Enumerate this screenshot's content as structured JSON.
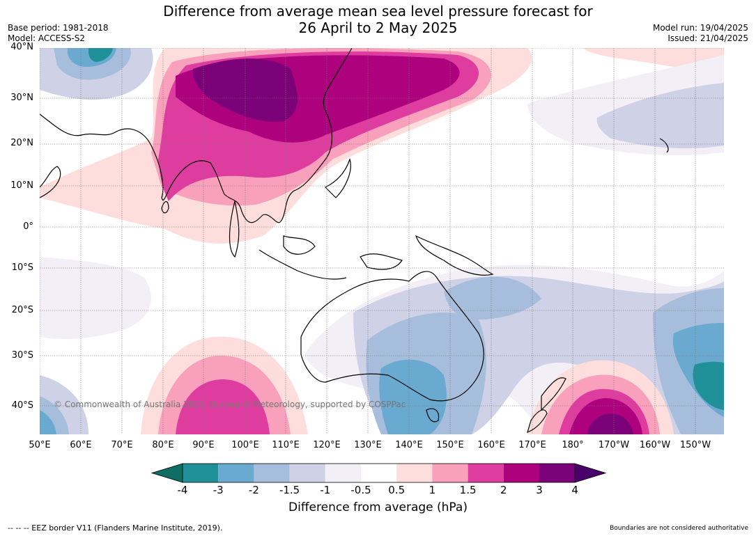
{
  "title_line1": "Difference from average mean sea level pressure forecast for",
  "title_line2": "26 April to 2 May 2025",
  "base_period": "Base period: 1981-2018",
  "model": "Model: ACCESS-S2",
  "model_run": "Model run: 19/04/2025",
  "issued": "Issued: 21/04/2025",
  "copyright": "© Commonwealth of Australia 2025, Bureau of Meteorology, supported by COSPPac",
  "lat_labels": [
    "40°N",
    "30°N",
    "20°N",
    "10°N",
    "0°",
    "10°S",
    "20°S",
    "30°S",
    "40°S"
  ],
  "lon_labels": [
    "50°E",
    "60°E",
    "70°E",
    "80°E",
    "90°E",
    "100°E",
    "110°E",
    "120°E",
    "130°E",
    "140°E",
    "150°E",
    "160°E",
    "170°E",
    "180°",
    "170°W",
    "160°W",
    "150°W"
  ],
  "colorbar": {
    "title": "Difference from average (hPa)",
    "ticks": [
      "-4",
      "-3",
      "-2",
      "-1.5",
      "-1",
      "-0.5",
      "0.5",
      "1",
      "1.5",
      "2",
      "3",
      "4"
    ],
    "colors": [
      "#0f6e64",
      "#1f9097",
      "#6aa9d0",
      "#a6bedb",
      "#cfd1e6",
      "#f3eff6",
      "#ffffff",
      "#fddedc",
      "#f9a0bd",
      "#df3c9f",
      "#ae017e",
      "#7a0177",
      "#49006a"
    ]
  },
  "footer_left": "--  --  -- EEZ border V11 (Flanders Marine Institute, 2019).",
  "footer_right": "Boundaries are not considered authoritative"
}
